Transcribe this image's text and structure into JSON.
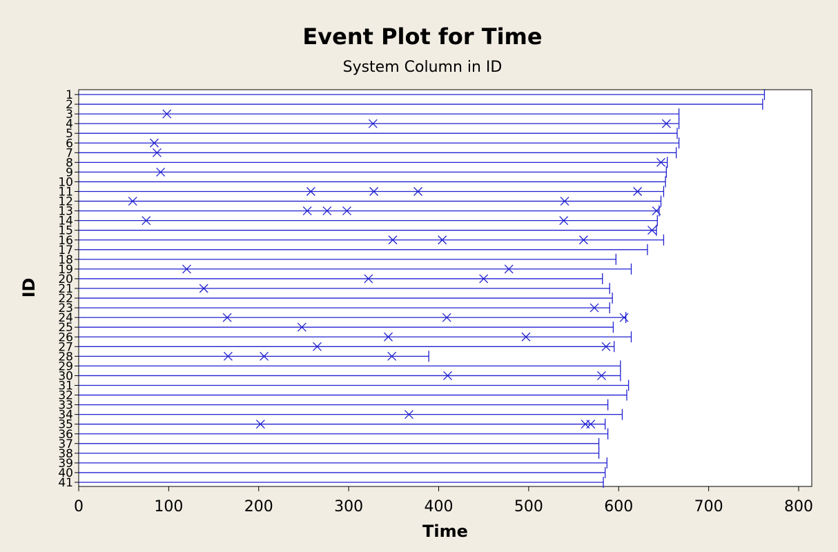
{
  "chart_data": {
    "type": "scatter",
    "title": "Event Plot for Time",
    "subtitle": "System Column in ID",
    "xlabel": "Time",
    "ylabel": "ID",
    "xlim": [
      0,
      815
    ],
    "xticks": [
      0,
      100,
      200,
      300,
      400,
      500,
      600,
      700,
      800
    ],
    "ids": [
      1,
      2,
      3,
      4,
      5,
      6,
      7,
      8,
      9,
      10,
      11,
      12,
      13,
      14,
      15,
      16,
      17,
      18,
      19,
      20,
      21,
      22,
      23,
      24,
      25,
      26,
      27,
      28,
      29,
      30,
      31,
      32,
      33,
      34,
      35,
      36,
      37,
      38,
      39,
      40,
      41
    ],
    "end_times": [
      762,
      760,
      667,
      667,
      665,
      667,
      664,
      654,
      653,
      652,
      650,
      647,
      645,
      643,
      642,
      650,
      632,
      597,
      614,
      582,
      590,
      593,
      590,
      608,
      594,
      614,
      595,
      389,
      602,
      602,
      611,
      609,
      588,
      604,
      585,
      588,
      578,
      578,
      587,
      585,
      583
    ],
    "event_times": [
      [],
      [],
      [
        98
      ],
      [
        327,
        653
      ],
      [],
      [
        84
      ],
      [
        87
      ],
      [
        647
      ],
      [
        91
      ],
      [],
      [
        258,
        328,
        377,
        621
      ],
      [
        60,
        540
      ],
      [
        254,
        276,
        298,
        642
      ],
      [
        75,
        539
      ],
      [
        637
      ],
      [
        349,
        404,
        561
      ],
      [],
      [],
      [
        120,
        478
      ],
      [
        322,
        450
      ],
      [
        139
      ],
      [],
      [
        573
      ],
      [
        165,
        409,
        606
      ],
      [
        248
      ],
      [
        344,
        497
      ],
      [
        265,
        586
      ],
      [
        166,
        206,
        348
      ],
      [],
      [
        410,
        581
      ],
      [],
      [],
      [],
      [
        367
      ],
      [
        202,
        563,
        569
      ],
      [],
      [],
      [],
      [],
      [],
      []
    ],
    "line_color": "#1f1fd0",
    "event_marker": "x",
    "grid": false,
    "legend": "none"
  }
}
